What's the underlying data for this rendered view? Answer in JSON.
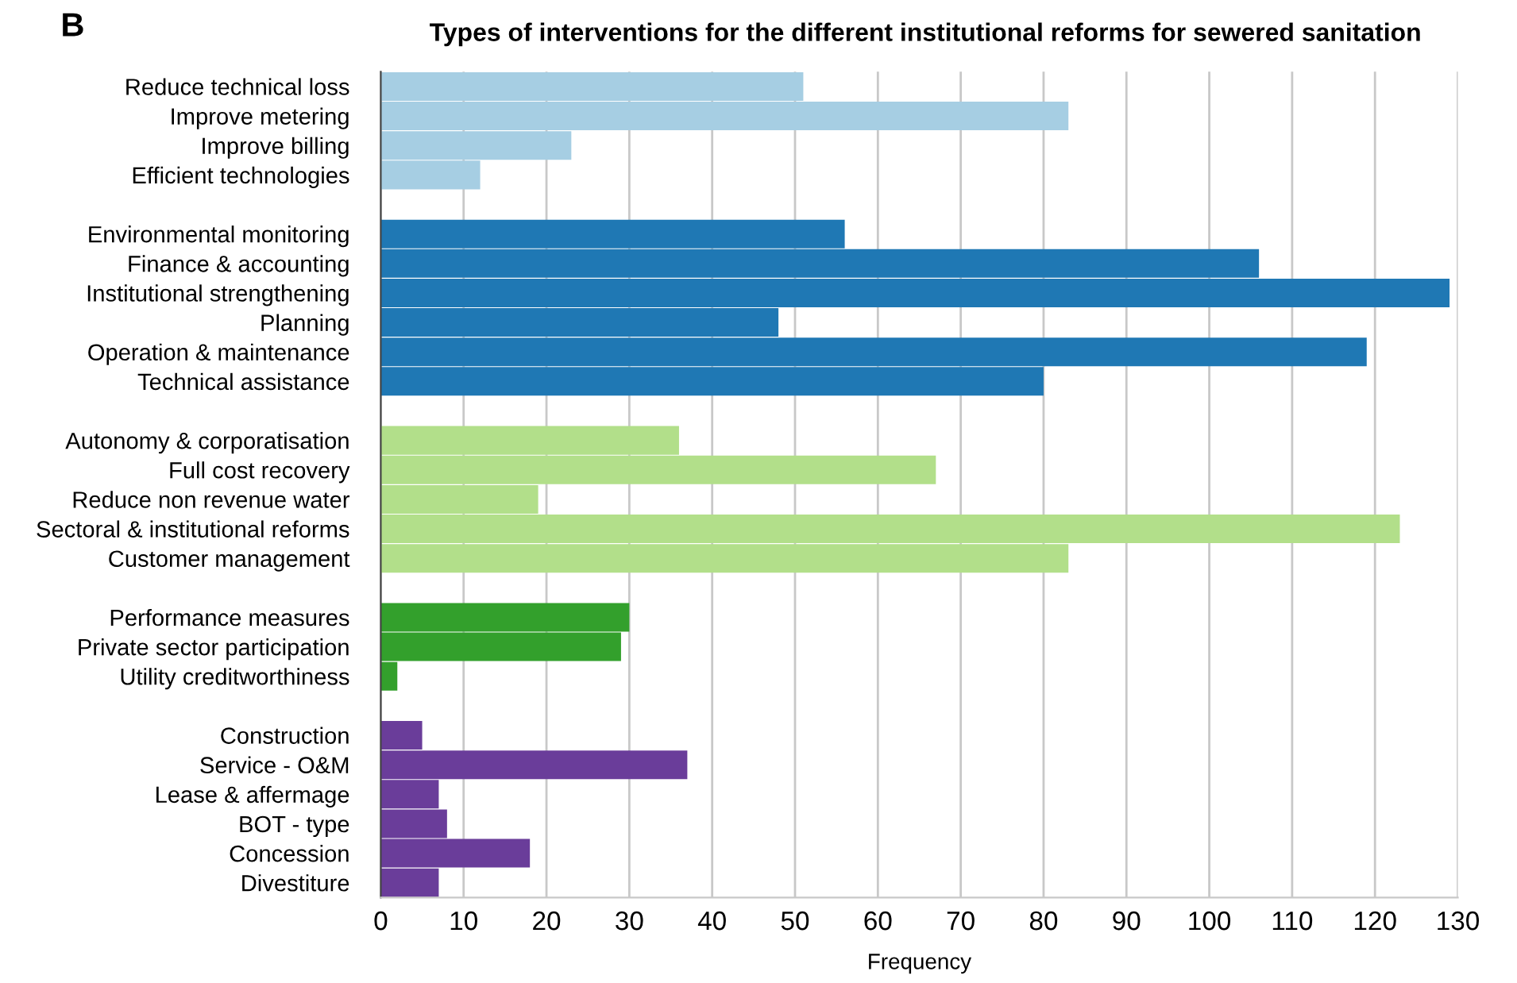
{
  "chart_data": {
    "type": "bar",
    "orientation": "horizontal",
    "title": "Types of interventions for the different institutional reforms for sewered sanitation",
    "xlabel": "Frequency",
    "annotations": [
      "B"
    ],
    "categories": [
      "Reduce technical loss",
      "Improve metering",
      "Improve billing",
      "Efficient technologies",
      null,
      "Environmental monitoring",
      "Finance & accounting",
      "Institutional strengthening",
      "Planning",
      "Operation & maintenance",
      "Technical assistance",
      null,
      "Autonomy & corporatisation",
      "Full cost recovery",
      "Reduce non revenue water",
      "Sectoral & institutional reforms",
      "Customer management",
      null,
      "Performance measures",
      "Private sector participation",
      "Utility creditworthiness",
      null,
      "Construction",
      "Service - O&M",
      "Lease & affermage",
      "BOT - type",
      "Concession",
      "Divestiture"
    ],
    "values": [
      51,
      83,
      23,
      12,
      null,
      56,
      106,
      129,
      48,
      119,
      80,
      null,
      36,
      67,
      19,
      123,
      83,
      null,
      30,
      29,
      2,
      null,
      5,
      37,
      7,
      8,
      18,
      7
    ],
    "colors": [
      "#a6cee3",
      "#a6cee3",
      "#a6cee3",
      "#a6cee3",
      null,
      "#1f78b4",
      "#1f78b4",
      "#1f78b4",
      "#1f78b4",
      "#1f78b4",
      "#1f78b4",
      null,
      "#b2df8a",
      "#b2df8a",
      "#b2df8a",
      "#b2df8a",
      "#b2df8a",
      null,
      "#33a02c",
      "#33a02c",
      "#33a02c",
      null,
      "#6a3d9a",
      "#6a3d9a",
      "#6a3d9a",
      "#6a3d9a",
      "#6a3d9a",
      "#6a3d9a"
    ],
    "xlim": [
      0,
      130
    ],
    "xticks": [
      0,
      10,
      20,
      30,
      40,
      50,
      60,
      70,
      80,
      90,
      100,
      110,
      120,
      130
    ],
    "grid": "x"
  }
}
